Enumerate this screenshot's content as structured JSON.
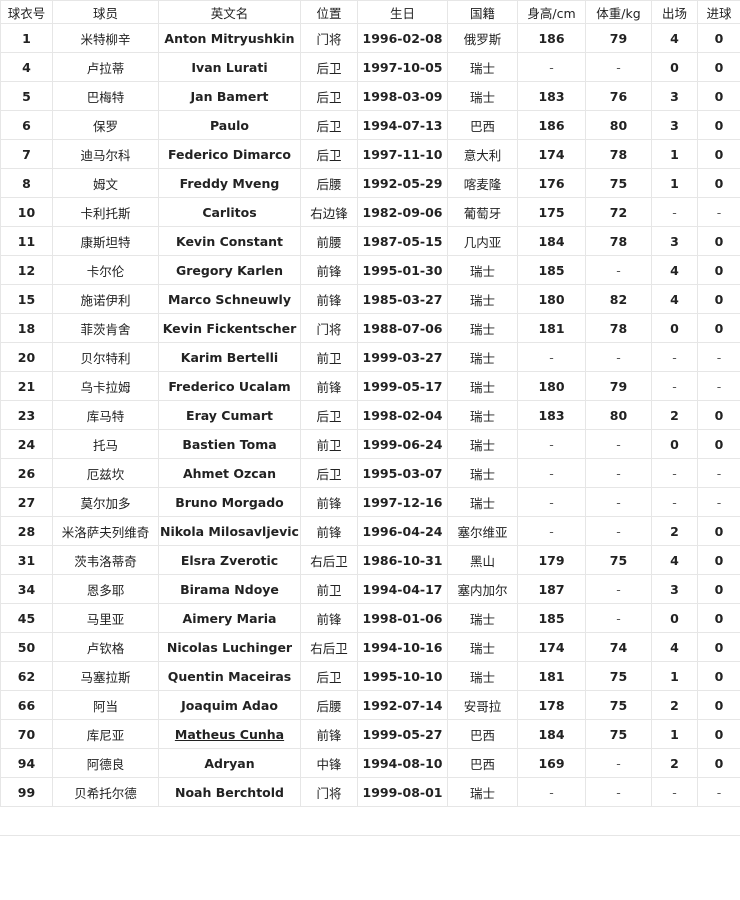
{
  "table": {
    "header": [
      "球衣号",
      "球员",
      "英文名",
      "位置",
      "生日",
      "国籍",
      "身高/cm",
      "体重/kg",
      "出场",
      "进球"
    ],
    "rows": [
      [
        "1",
        "米特柳辛",
        "Anton Mitryushkin",
        "门将",
        "1996-02-08",
        "俄罗斯",
        "186",
        "79",
        "4",
        "0"
      ],
      [
        "4",
        "卢拉蒂",
        "Ivan Lurati",
        "后卫",
        "1997-10-05",
        "瑞士",
        "-",
        "-",
        "0",
        "0"
      ],
      [
        "5",
        "巴梅特",
        "Jan Bamert",
        "后卫",
        "1998-03-09",
        "瑞士",
        "183",
        "76",
        "3",
        "0"
      ],
      [
        "6",
        "保罗",
        "Paulo",
        "后卫",
        "1994-07-13",
        "巴西",
        "186",
        "80",
        "3",
        "0"
      ],
      [
        "7",
        "迪马尔科",
        "Federico Dimarco",
        "后卫",
        "1997-11-10",
        "意大利",
        "174",
        "78",
        "1",
        "0"
      ],
      [
        "8",
        "姆文",
        "Freddy Mveng",
        "后腰",
        "1992-05-29",
        "喀麦隆",
        "176",
        "75",
        "1",
        "0"
      ],
      [
        "10",
        "卡利托斯",
        "Carlitos",
        "右边锋",
        "1982-09-06",
        "葡萄牙",
        "175",
        "72",
        "-",
        "-"
      ],
      [
        "11",
        "康斯坦特",
        "Kevin Constant",
        "前腰",
        "1987-05-15",
        "几内亚",
        "184",
        "78",
        "3",
        "0"
      ],
      [
        "12",
        "卡尔伦",
        "Gregory Karlen",
        "前锋",
        "1995-01-30",
        "瑞士",
        "185",
        "-",
        "4",
        "0"
      ],
      [
        "15",
        "施诺伊利",
        "Marco Schneuwly",
        "前锋",
        "1985-03-27",
        "瑞士",
        "180",
        "82",
        "4",
        "0"
      ],
      [
        "18",
        "菲茨肯舍",
        "Kevin Fickentscher",
        "门将",
        "1988-07-06",
        "瑞士",
        "181",
        "78",
        "0",
        "0"
      ],
      [
        "20",
        "贝尔特利",
        "Karim Bertelli",
        "前卫",
        "1999-03-27",
        "瑞士",
        "-",
        "-",
        "-",
        "-"
      ],
      [
        "21",
        "乌卡拉姆",
        "Frederico Ucalam",
        "前锋",
        "1999-05-17",
        "瑞士",
        "180",
        "79",
        "-",
        "-"
      ],
      [
        "23",
        "库马特",
        "Eray Cumart",
        "后卫",
        "1998-02-04",
        "瑞士",
        "183",
        "80",
        "2",
        "0"
      ],
      [
        "24",
        "托马",
        "Bastien Toma",
        "前卫",
        "1999-06-24",
        "瑞士",
        "-",
        "-",
        "0",
        "0"
      ],
      [
        "26",
        "厄兹坎",
        "Ahmet Ozcan",
        "后卫",
        "1995-03-07",
        "瑞士",
        "-",
        "-",
        "-",
        "-"
      ],
      [
        "27",
        "莫尔加多",
        "Bruno Morgado",
        "前锋",
        "1997-12-16",
        "瑞士",
        "-",
        "-",
        "-",
        "-"
      ],
      [
        "28",
        "米洛萨夫列维奇",
        "Nikola Milosavljevic",
        "前锋",
        "1996-04-24",
        "塞尔维亚",
        "-",
        "-",
        "2",
        "0"
      ],
      [
        "31",
        "茨韦洛蒂奇",
        "Elsra Zverotic",
        "右后卫",
        "1986-10-31",
        "黑山",
        "179",
        "75",
        "4",
        "0"
      ],
      [
        "34",
        "恩多耶",
        "Birama Ndoye",
        "前卫",
        "1994-04-17",
        "塞内加尔",
        "187",
        "-",
        "3",
        "0"
      ],
      [
        "45",
        "马里亚",
        "Aimery Maria",
        "前锋",
        "1998-01-06",
        "瑞士",
        "185",
        "-",
        "0",
        "0"
      ],
      [
        "50",
        "卢钦格",
        "Nicolas Luchinger",
        "右后卫",
        "1994-10-16",
        "瑞士",
        "174",
        "74",
        "4",
        "0"
      ],
      [
        "62",
        "马塞拉斯",
        "Quentin Maceiras",
        "后卫",
        "1995-10-10",
        "瑞士",
        "181",
        "75",
        "1",
        "0"
      ],
      [
        "66",
        "阿当",
        "Joaquim Adao",
        "后腰",
        "1992-07-14",
        "安哥拉",
        "178",
        "75",
        "2",
        "0"
      ],
      [
        "70",
        "库尼亚",
        "Matheus Cunha",
        "前锋",
        "1999-05-27",
        "巴西",
        "184",
        "75",
        "1",
        "0"
      ],
      [
        "94",
        "阿德良",
        "Adryan",
        "中锋",
        "1994-08-10",
        "巴西",
        "169",
        "-",
        "2",
        "0"
      ],
      [
        "99",
        "贝希托尔德",
        "Noah Berchtold",
        "门将",
        "1999-08-01",
        "瑞士",
        "-",
        "-",
        "-",
        "-"
      ]
    ]
  }
}
